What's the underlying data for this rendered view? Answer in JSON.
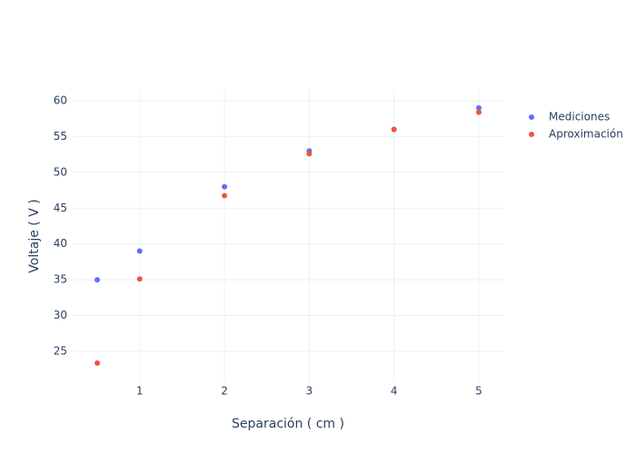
{
  "chart_data": {
    "type": "scatter",
    "xlabel": "Separación ( cm )",
    "ylabel": "Voltaje ( V )",
    "series": [
      {
        "name": "Mediciones",
        "color": "#636efa",
        "x": [
          0.5,
          1,
          2,
          3,
          4,
          5
        ],
        "values": [
          35,
          39,
          48,
          53,
          56,
          59
        ]
      },
      {
        "name": "Aproximación",
        "color": "#ef553b",
        "x": [
          0.5,
          1,
          2,
          3,
          4,
          5
        ],
        "values": [
          23.35,
          35.1,
          46.75,
          52.6,
          56.0,
          58.4
        ]
      }
    ],
    "xlim": [
      0.21,
      5.3
    ],
    "xticks": [
      1,
      2,
      3,
      4,
      5
    ],
    "ylim": [
      20.8,
      61.4
    ],
    "yticks": [
      25,
      30,
      35,
      40,
      45,
      50,
      55,
      60
    ],
    "grid": true,
    "legend": "right"
  }
}
